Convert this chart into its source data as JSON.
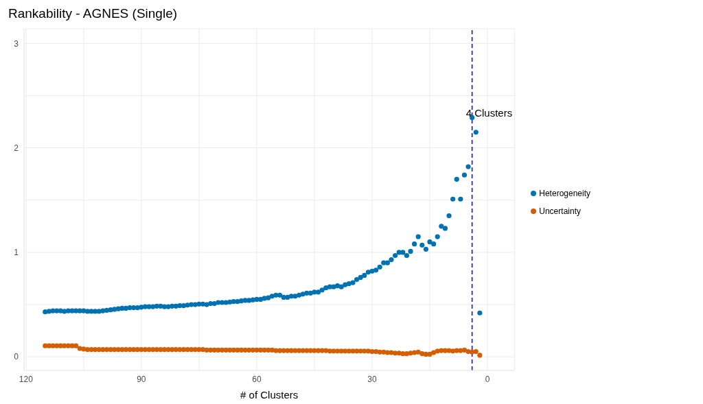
{
  "chart_data": {
    "type": "scatter",
    "title": "Rankability - AGNES (Single)",
    "xlabel": "# of Clusters",
    "x": [
      115,
      114,
      113,
      112,
      111,
      110,
      109,
      108,
      107,
      106,
      105,
      104,
      103,
      102,
      101,
      100,
      99,
      98,
      97,
      96,
      95,
      94,
      93,
      92,
      91,
      90,
      89,
      88,
      87,
      86,
      85,
      84,
      83,
      82,
      81,
      80,
      79,
      78,
      77,
      76,
      75,
      74,
      73,
      72,
      71,
      70,
      69,
      68,
      67,
      66,
      65,
      64,
      63,
      62,
      61,
      60,
      59,
      58,
      57,
      56,
      55,
      54,
      53,
      52,
      51,
      50,
      49,
      48,
      47,
      46,
      45,
      44,
      43,
      42,
      41,
      40,
      39,
      38,
      37,
      36,
      35,
      34,
      33,
      32,
      31,
      30,
      29,
      28,
      27,
      26,
      25,
      24,
      23,
      22,
      21,
      20,
      19,
      18,
      17,
      16,
      15,
      14,
      13,
      12,
      11,
      10,
      9,
      8,
      7,
      6,
      5,
      4,
      3,
      2
    ],
    "series": [
      {
        "name": "Heterogeneity",
        "color": "#0072b2",
        "values": [
          0.43,
          0.435,
          0.44,
          0.44,
          0.44,
          0.435,
          0.44,
          0.44,
          0.44,
          0.44,
          0.44,
          0.435,
          0.435,
          0.435,
          0.435,
          0.44,
          0.445,
          0.45,
          0.455,
          0.46,
          0.465,
          0.465,
          0.47,
          0.47,
          0.47,
          0.475,
          0.48,
          0.48,
          0.48,
          0.485,
          0.485,
          0.48,
          0.48,
          0.485,
          0.485,
          0.49,
          0.49,
          0.495,
          0.5,
          0.5,
          0.505,
          0.505,
          0.5,
          0.51,
          0.51,
          0.52,
          0.52,
          0.52,
          0.525,
          0.53,
          0.53,
          0.535,
          0.54,
          0.54,
          0.545,
          0.55,
          0.55,
          0.56,
          0.565,
          0.58,
          0.59,
          0.59,
          0.57,
          0.57,
          0.58,
          0.58,
          0.59,
          0.6,
          0.61,
          0.61,
          0.62,
          0.62,
          0.64,
          0.66,
          0.67,
          0.67,
          0.68,
          0.67,
          0.69,
          0.7,
          0.71,
          0.74,
          0.76,
          0.78,
          0.81,
          0.82,
          0.83,
          0.86,
          0.9,
          0.9,
          0.93,
          0.97,
          1.0,
          1.0,
          0.97,
          1.01,
          1.08,
          1.15,
          1.07,
          1.03,
          1.1,
          1.08,
          1.15,
          1.25,
          1.23,
          1.35,
          1.51,
          1.7,
          1.51,
          1.74,
          1.82,
          2.29,
          2.15,
          0.42
        ]
      },
      {
        "name": "Uncertainty",
        "color": "#d55e00",
        "values": [
          0.105,
          0.105,
          0.105,
          0.105,
          0.105,
          0.105,
          0.105,
          0.105,
          0.105,
          0.08,
          0.075,
          0.07,
          0.07,
          0.07,
          0.07,
          0.07,
          0.07,
          0.07,
          0.07,
          0.07,
          0.07,
          0.07,
          0.07,
          0.07,
          0.07,
          0.07,
          0.07,
          0.07,
          0.07,
          0.07,
          0.07,
          0.07,
          0.07,
          0.07,
          0.07,
          0.07,
          0.07,
          0.07,
          0.07,
          0.07,
          0.07,
          0.07,
          0.065,
          0.065,
          0.065,
          0.065,
          0.065,
          0.065,
          0.065,
          0.065,
          0.065,
          0.065,
          0.065,
          0.065,
          0.065,
          0.065,
          0.065,
          0.065,
          0.065,
          0.065,
          0.06,
          0.06,
          0.06,
          0.06,
          0.06,
          0.06,
          0.06,
          0.06,
          0.06,
          0.06,
          0.06,
          0.06,
          0.06,
          0.06,
          0.055,
          0.055,
          0.055,
          0.055,
          0.055,
          0.055,
          0.055,
          0.055,
          0.055,
          0.055,
          0.055,
          0.05,
          0.05,
          0.045,
          0.045,
          0.04,
          0.04,
          0.035,
          0.035,
          0.03,
          0.03,
          0.035,
          0.04,
          0.045,
          0.03,
          0.025,
          0.025,
          0.04,
          0.055,
          0.06,
          0.06,
          0.06,
          0.055,
          0.06,
          0.06,
          0.065,
          0.05,
          0.045,
          0.05,
          0.015
        ]
      }
    ],
    "xlim": [
      120.5,
      -7
    ],
    "xticks": [
      120,
      {
        "value": 105,
        "label": null
      },
      90,
      {
        "value": 75,
        "label": null
      },
      60,
      {
        "value": 45,
        "label": null
      },
      30,
      {
        "value": 15,
        "label": null
      },
      0
    ],
    "ylim": [
      -0.13,
      3.14
    ],
    "yticks": [
      0,
      {
        "value": 0.5,
        "label": null
      },
      1,
      {
        "value": 1.5,
        "label": null
      },
      2,
      {
        "value": 2.5,
        "label": null
      },
      3
    ],
    "ref_lines": [
      {
        "axis": "x",
        "value": 4,
        "color": "#0000ff",
        "line_style": "dashed"
      }
    ],
    "annotations": [
      {
        "text": "4 Clusters",
        "x": 4,
        "y": 2.29
      }
    ],
    "grid": true,
    "legend": "right",
    "marker": "circle"
  }
}
